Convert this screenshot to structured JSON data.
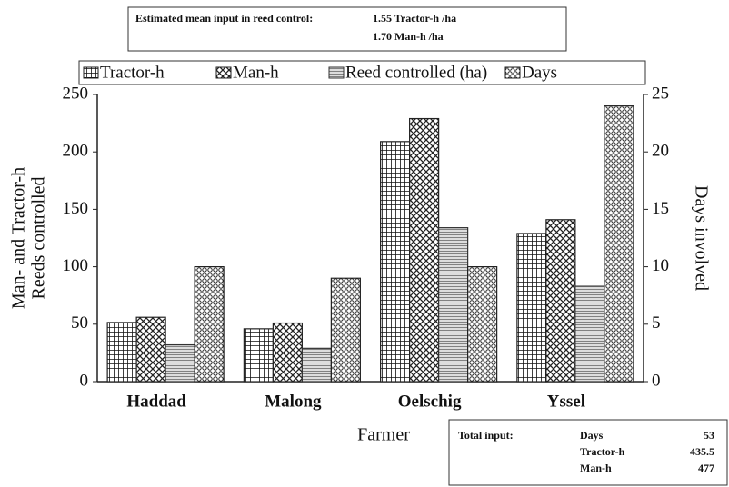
{
  "chart_data": {
    "type": "bar",
    "mean_input": {
      "label": "Estimated mean input in reed control:",
      "lines": [
        "1.55 Tractor-h /ha",
        "1.70 Man-h /ha"
      ]
    },
    "total_input": {
      "label": "Total input:",
      "rows": [
        [
          "Days",
          "53"
        ],
        [
          "Tractor-h",
          "435.5"
        ],
        [
          "Man-h",
          "477"
        ]
      ]
    },
    "categories": [
      "Haddad",
      "Malong",
      "Oelschig",
      "Yssel"
    ],
    "series": [
      {
        "name": "Tractor-h",
        "color": "#222",
        "pattern": "grid",
        "values": [
          51.5,
          46,
          209,
          129
        ]
      },
      {
        "name": "Man-h",
        "color": "#222",
        "pattern": "cross",
        "values": [
          56,
          51,
          229,
          141
        ]
      },
      {
        "name": "Reed controlled (ha)",
        "color": "#333",
        "pattern": "hlines",
        "values": [
          32,
          29,
          134,
          83
        ]
      },
      {
        "name": "Days",
        "color": "#222",
        "pattern": "circles",
        "axis": "y2",
        "values": [
          10,
          9,
          10,
          24
        ]
      }
    ],
    "xlabel": "Farmer",
    "ylabel": [
      "Man- and Tractor-h",
      "Reeds controlled"
    ],
    "y2label": "Days involved",
    "ylim": [
      0,
      250
    ],
    "yticks": [
      0,
      50,
      100,
      150,
      200,
      250
    ],
    "y2lim": [
      0,
      25
    ],
    "y2ticks": [
      0,
      5,
      10,
      15,
      20,
      25
    ],
    "legend": "top"
  }
}
